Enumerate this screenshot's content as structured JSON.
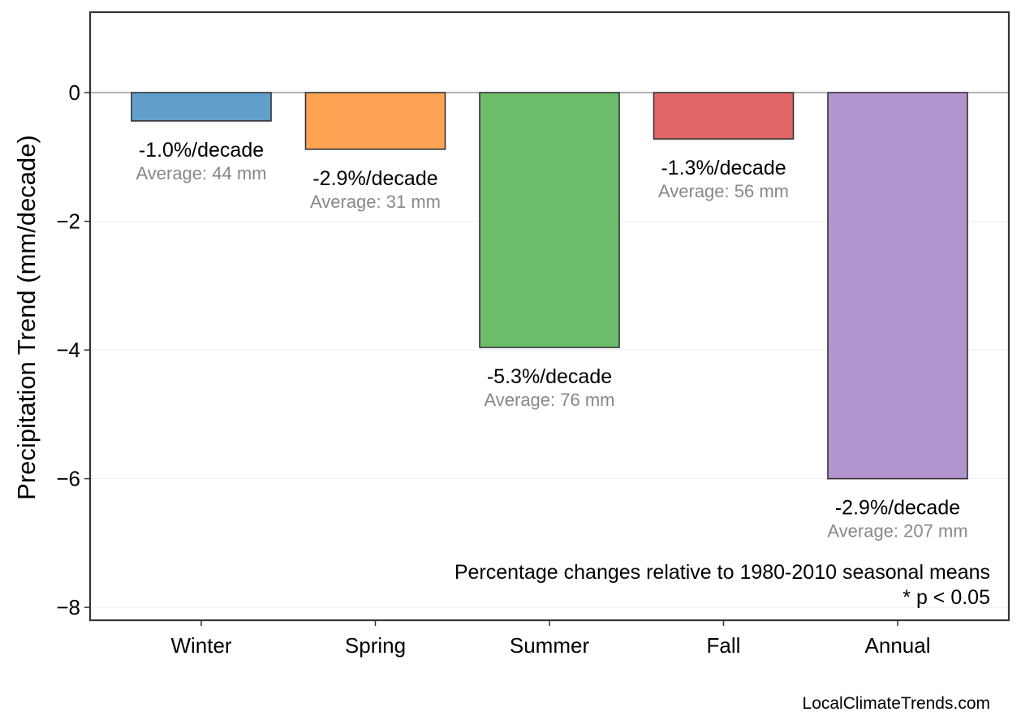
{
  "chart_data": {
    "type": "bar",
    "categories": [
      "Winter",
      "Spring",
      "Summer",
      "Fall",
      "Annual"
    ],
    "values": [
      -0.44,
      -0.88,
      -3.96,
      -0.72,
      -6.0
    ],
    "colors": [
      "#62a0cb",
      "#ffa354",
      "#6cbd6a",
      "#e16668",
      "#b294cf"
    ],
    "percent_labels": [
      "-1.0%/decade",
      "-2.9%/decade",
      "-5.3%/decade",
      "-1.3%/decade",
      "-2.9%/decade"
    ],
    "average_labels": [
      "Average: 44 mm",
      "Average: 31 mm",
      "Average: 76 mm",
      "Average: 56 mm",
      "Average: 207 mm"
    ],
    "ylabel": "Precipitation Trend (mm/decade)",
    "ylim": [
      -8.2,
      1.25
    ],
    "yticks": [
      0,
      -2,
      -4,
      -6,
      -8
    ],
    "ytick_labels": [
      "0",
      "−2",
      "−4",
      "−6",
      "−8"
    ],
    "grid": "horizontal, faint",
    "zero_line": true
  },
  "annotations": {
    "note_line1": "Percentage changes relative to 1980-2010 seasonal means",
    "note_line2": "* p < 0.05",
    "source": "LocalClimateTrends.com"
  }
}
